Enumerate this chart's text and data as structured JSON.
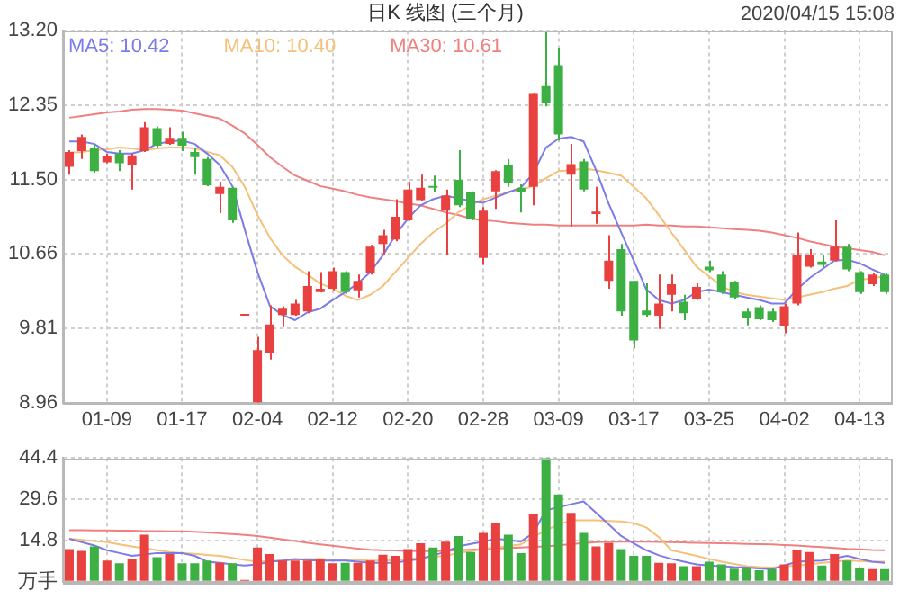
{
  "chart_data": [
    {
      "type": "candlestick",
      "title": "日K 线图 (三个月)",
      "annotations": [
        "2020/04/15 15:08"
      ],
      "categories": [
        null,
        null,
        null,
        "01-09",
        null,
        null,
        null,
        null,
        null,
        "01-17",
        null,
        null,
        null,
        null,
        null,
        "02-04",
        null,
        null,
        null,
        null,
        null,
        "02-12",
        null,
        null,
        null,
        null,
        null,
        "02-20",
        null,
        null,
        null,
        null,
        null,
        "02-28",
        null,
        null,
        null,
        null,
        null,
        "03-09",
        null,
        null,
        null,
        null,
        null,
        "03-17",
        null,
        null,
        null,
        null,
        null,
        "03-25",
        null,
        null,
        null,
        null,
        null,
        "04-02",
        null,
        null,
        null,
        null,
        null,
        "04-13",
        null,
        null
      ],
      "ohlc": [
        [
          11.65,
          11.84,
          11.56,
          11.82
        ],
        [
          11.83,
          12.02,
          11.74,
          11.99
        ],
        [
          11.87,
          11.91,
          11.58,
          11.6
        ],
        [
          11.7,
          11.8,
          11.69,
          11.77
        ],
        [
          11.8,
          11.84,
          11.6,
          11.69
        ],
        [
          11.67,
          11.8,
          11.39,
          11.78
        ],
        [
          11.83,
          12.16,
          11.82,
          12.1
        ],
        [
          12.09,
          12.11,
          11.87,
          11.89
        ],
        [
          11.91,
          12.1,
          11.9,
          11.98
        ],
        [
          11.98,
          12.05,
          11.83,
          11.89
        ],
        [
          11.82,
          11.86,
          11.56,
          11.76
        ],
        [
          11.74,
          11.76,
          11.43,
          11.44
        ],
        [
          11.34,
          11.48,
          11.12,
          11.42
        ],
        [
          11.41,
          11.42,
          11.01,
          11.04
        ],
        [
          9.95,
          9.95,
          9.95,
          9.95
        ],
        [
          8.96,
          9.71,
          8.96,
          9.56
        ],
        [
          9.53,
          10.07,
          9.45,
          9.85
        ],
        [
          9.96,
          10.06,
          9.82,
          10.03
        ],
        [
          9.96,
          10.13,
          9.95,
          10.09
        ],
        [
          10.0,
          10.46,
          9.98,
          10.29
        ],
        [
          10.22,
          10.45,
          10.22,
          10.26
        ],
        [
          10.26,
          10.5,
          10.24,
          10.46
        ],
        [
          10.45,
          10.46,
          10.2,
          10.22
        ],
        [
          10.24,
          10.42,
          10.16,
          10.35
        ],
        [
          10.44,
          10.76,
          10.42,
          10.74
        ],
        [
          10.77,
          10.93,
          10.64,
          10.87
        ],
        [
          10.82,
          11.28,
          10.8,
          11.08
        ],
        [
          11.04,
          11.48,
          11.03,
          11.39
        ],
        [
          11.27,
          11.56,
          11.26,
          11.41
        ],
        [
          11.43,
          11.55,
          11.36,
          11.41
        ],
        [
          11.15,
          11.39,
          10.64,
          11.32
        ],
        [
          11.5,
          11.84,
          11.19,
          11.21
        ],
        [
          11.36,
          11.37,
          11.04,
          11.06
        ],
        [
          10.61,
          11.19,
          10.53,
          11.15
        ],
        [
          11.37,
          11.61,
          11.17,
          11.6
        ],
        [
          11.67,
          11.74,
          11.42,
          11.47
        ],
        [
          11.41,
          11.45,
          11.13,
          11.36
        ],
        [
          11.42,
          12.49,
          11.21,
          12.49
        ],
        [
          12.57,
          13.2,
          12.34,
          12.38
        ],
        [
          12.81,
          13.01,
          11.95,
          12.02
        ],
        [
          11.56,
          11.91,
          10.97,
          11.68
        ],
        [
          11.71,
          11.74,
          11.37,
          11.39
        ],
        [
          11.11,
          11.42,
          11.0,
          11.14
        ],
        [
          10.35,
          10.87,
          10.26,
          10.58
        ],
        [
          10.71,
          10.77,
          9.95,
          10.0
        ],
        [
          10.35,
          10.35,
          9.58,
          9.67
        ],
        [
          10.01,
          10.32,
          9.93,
          9.96
        ],
        [
          9.95,
          10.42,
          9.8,
          10.09
        ],
        [
          10.19,
          10.42,
          10.0,
          10.31
        ],
        [
          10.11,
          10.19,
          9.9,
          9.98
        ],
        [
          10.14,
          10.32,
          10.13,
          10.28
        ],
        [
          10.51,
          10.58,
          10.45,
          10.47
        ],
        [
          10.42,
          10.46,
          10.2,
          10.22
        ],
        [
          10.33,
          10.35,
          10.14,
          10.16
        ],
        [
          10.0,
          10.03,
          9.84,
          9.92
        ],
        [
          10.05,
          10.07,
          9.9,
          9.91
        ],
        [
          10.0,
          10.03,
          9.88,
          9.9
        ],
        [
          9.83,
          10.09,
          9.75,
          10.06
        ],
        [
          10.09,
          10.9,
          10.07,
          10.64
        ],
        [
          10.51,
          10.71,
          10.5,
          10.64
        ],
        [
          10.57,
          10.64,
          10.5,
          10.53
        ],
        [
          10.58,
          11.04,
          10.57,
          10.74
        ],
        [
          10.74,
          10.77,
          10.46,
          10.48
        ],
        [
          10.45,
          10.46,
          10.2,
          10.22
        ],
        [
          10.31,
          10.44,
          10.29,
          10.42
        ],
        [
          10.42,
          10.44,
          10.2,
          10.22
        ]
      ],
      "colors": [
        "#e8413f",
        "#e8413f",
        "#3cb043",
        "#e8413f",
        "#3cb043",
        "#e8413f",
        "#e8413f",
        "#3cb043",
        "#e8413f",
        "#3cb043",
        "#3cb043",
        "#3cb043",
        "#e8413f",
        "#3cb043",
        "#e8413f",
        "#e8413f",
        "#e8413f",
        "#e8413f",
        "#e8413f",
        "#e8413f",
        "#e8413f",
        "#e8413f",
        "#3cb043",
        "#e8413f",
        "#e8413f",
        "#e8413f",
        "#e8413f",
        "#e8413f",
        "#e8413f",
        "#3cb043",
        "#e8413f",
        "#3cb043",
        "#3cb043",
        "#e8413f",
        "#e8413f",
        "#3cb043",
        "#3cb043",
        "#e8413f",
        "#3cb043",
        "#3cb043",
        "#e8413f",
        "#3cb043",
        "#e8413f",
        "#e8413f",
        "#3cb043",
        "#3cb043",
        "#3cb043",
        "#e8413f",
        "#e8413f",
        "#3cb043",
        "#e8413f",
        "#3cb043",
        "#3cb043",
        "#3cb043",
        "#3cb043",
        "#3cb043",
        "#3cb043",
        "#e8413f",
        "#e8413f",
        "#e8413f",
        "#3cb043",
        "#e8413f",
        "#3cb043",
        "#3cb043",
        "#e8413f",
        "#3cb043"
      ],
      "series": [
        {
          "type": "line",
          "name": "MA5: 10.42",
          "color": "#7b7bea",
          "values": [
            11.94,
            11.94,
            11.91,
            11.82,
            11.8,
            11.8,
            11.84,
            11.91,
            11.94,
            11.95,
            11.91,
            11.8,
            11.67,
            11.43,
            10.93,
            10.45,
            10.06,
            9.96,
            9.9,
            9.99,
            10.03,
            10.13,
            10.22,
            10.32,
            10.45,
            10.64,
            10.87,
            11.06,
            11.21,
            11.28,
            11.32,
            11.29,
            11.26,
            11.24,
            11.3,
            11.36,
            11.41,
            11.58,
            11.87,
            11.97,
            11.99,
            11.94,
            11.61,
            11.23,
            10.9,
            10.58,
            10.25,
            10.13,
            10.09,
            10.13,
            10.22,
            10.25,
            10.22,
            10.19,
            10.16,
            10.13,
            10.09,
            10.09,
            10.25,
            10.38,
            10.48,
            10.58,
            10.59,
            10.55,
            10.48,
            10.42
          ]
        },
        {
          "type": "line",
          "name": "MA10: 10.40",
          "color": "#f5c07a",
          "values": [
            11.81,
            11.82,
            11.84,
            11.85,
            11.87,
            11.86,
            11.84,
            11.86,
            11.87,
            11.87,
            11.86,
            11.82,
            11.78,
            11.65,
            11.42,
            11.1,
            10.84,
            10.64,
            10.51,
            10.42,
            10.32,
            10.26,
            10.18,
            10.13,
            10.19,
            10.29,
            10.45,
            10.61,
            10.77,
            10.9,
            11.0,
            11.13,
            11.21,
            11.28,
            11.32,
            11.36,
            11.39,
            11.43,
            11.52,
            11.6,
            11.61,
            11.63,
            11.61,
            11.58,
            11.55,
            11.42,
            11.29,
            11.1,
            10.9,
            10.71,
            10.51,
            10.4,
            10.29,
            10.22,
            10.19,
            10.17,
            10.15,
            10.13,
            10.16,
            10.19,
            10.22,
            10.26,
            10.29,
            10.36,
            10.38,
            10.4
          ]
        },
        {
          "type": "line",
          "name": "MA30: 10.61",
          "color": "#f08080",
          "values": [
            12.21,
            12.23,
            12.25,
            12.27,
            12.28,
            12.3,
            12.31,
            12.31,
            12.3,
            12.29,
            12.26,
            12.23,
            12.2,
            12.12,
            12.03,
            11.9,
            11.76,
            11.65,
            11.55,
            11.49,
            11.43,
            11.4,
            11.37,
            11.33,
            11.3,
            11.28,
            11.26,
            11.23,
            11.21,
            11.17,
            11.13,
            11.1,
            11.06,
            11.04,
            11.03,
            11.01,
            11.0,
            10.99,
            10.99,
            10.98,
            10.98,
            10.98,
            10.98,
            10.98,
            10.98,
            10.98,
            10.99,
            10.98,
            10.98,
            10.97,
            10.97,
            10.96,
            10.95,
            10.94,
            10.93,
            10.92,
            10.9,
            10.87,
            10.84,
            10.8,
            10.77,
            10.74,
            10.72,
            10.7,
            10.68,
            10.64
          ]
        }
      ],
      "ylim": [
        8.96,
        13.2
      ],
      "yticks": [
        {
          "value": 8.96,
          "label": "8.96"
        },
        {
          "value": 9.81,
          "label": "9.81"
        },
        {
          "value": 10.66,
          "label": "10.66"
        },
        {
          "value": 11.5,
          "label": "11.50"
        },
        {
          "value": 12.35,
          "label": "12.35"
        },
        {
          "value": 13.2,
          "label": "13.20"
        }
      ],
      "grid": true,
      "legend": "top left"
    },
    {
      "type": "bar",
      "categories": [
        null,
        null,
        null,
        null,
        null,
        null,
        null,
        null,
        null,
        null,
        null,
        null,
        null,
        null,
        null,
        null,
        null,
        null,
        null,
        null,
        null,
        null,
        null,
        null,
        null,
        null,
        null,
        null,
        null,
        null,
        null,
        null,
        null,
        null,
        null,
        null,
        null,
        null,
        null,
        null,
        null,
        null,
        null,
        null,
        null,
        null,
        null,
        null,
        null,
        null,
        null,
        null,
        null,
        null,
        null,
        null,
        null,
        null,
        null,
        null,
        null,
        null,
        null,
        null,
        null,
        null
      ],
      "series": [
        {
          "type": "bar",
          "values": [
            11.7,
            11.1,
            12.7,
            7.6,
            6.6,
            8.2,
            16.9,
            8.8,
            9.9,
            6.6,
            6.6,
            7.6,
            6.8,
            6.6,
            0.6,
            12.3,
            9.9,
            7.6,
            7.6,
            7.6,
            8.2,
            6.6,
            6.8,
            6.8,
            7.6,
            9.7,
            9.3,
            11.7,
            13.8,
            12.3,
            14.4,
            16.4,
            10.7,
            17.5,
            21.0,
            16.9,
            10.3,
            24.3,
            44.4,
            31.3,
            24.7,
            17.5,
            12.7,
            14.0,
            11.7,
            9.3,
            9.3,
            6.8,
            6.6,
            5.6,
            5.6,
            7.2,
            6.2,
            4.7,
            5.1,
            4.1,
            4.5,
            6.2,
            11.3,
            10.7,
            5.8,
            9.9,
            7.6,
            5.1,
            4.5,
            4.5
          ],
          "colors": [
            "#e8413f",
            "#e8413f",
            "#3cb043",
            "#e8413f",
            "#3cb043",
            "#e8413f",
            "#e8413f",
            "#3cb043",
            "#e8413f",
            "#3cb043",
            "#3cb043",
            "#3cb043",
            "#e8413f",
            "#3cb043",
            "#e8413f",
            "#e8413f",
            "#e8413f",
            "#e8413f",
            "#e8413f",
            "#e8413f",
            "#e8413f",
            "#e8413f",
            "#3cb043",
            "#e8413f",
            "#e8413f",
            "#e8413f",
            "#e8413f",
            "#e8413f",
            "#e8413f",
            "#3cb043",
            "#e8413f",
            "#3cb043",
            "#3cb043",
            "#e8413f",
            "#e8413f",
            "#3cb043",
            "#3cb043",
            "#e8413f",
            "#3cb043",
            "#3cb043",
            "#e8413f",
            "#3cb043",
            "#e8413f",
            "#e8413f",
            "#3cb043",
            "#3cb043",
            "#3cb043",
            "#e8413f",
            "#e8413f",
            "#3cb043",
            "#e8413f",
            "#3cb043",
            "#3cb043",
            "#3cb043",
            "#3cb043",
            "#3cb043",
            "#3cb043",
            "#e8413f",
            "#e8413f",
            "#e8413f",
            "#3cb043",
            "#e8413f",
            "#3cb043",
            "#3cb043",
            "#e8413f",
            "#3cb043"
          ]
        },
        {
          "type": "line",
          "color": "#7b7bea",
          "values": [
            15.4,
            14.2,
            13.0,
            11.3,
            10.3,
            9.3,
            9.8,
            10.3,
            10.3,
            10.3,
            9.3,
            7.2,
            6.8,
            6.2,
            5.8,
            6.2,
            7.2,
            7.6,
            8.2,
            7.8,
            7.6,
            7.6,
            7.6,
            7.2,
            6.8,
            6.8,
            6.8,
            7.6,
            8.2,
            9.5,
            10.7,
            12.7,
            13.6,
            14.4,
            15.4,
            15.0,
            14.4,
            17.5,
            25.7,
            26.7,
            27.8,
            28.8,
            24.7,
            20.6,
            16.4,
            13.8,
            11.3,
            9.5,
            8.2,
            7.2,
            6.2,
            5.8,
            5.6,
            5.3,
            5.1,
            4.8,
            4.5,
            5.8,
            7.2,
            7.4,
            7.6,
            8.4,
            9.3,
            8.2,
            7.2,
            6.8
          ]
        },
        {
          "type": "line",
          "color": "#f5c07a",
          "values": [
            15.4,
            15.0,
            14.6,
            14.2,
            13.4,
            12.7,
            12.0,
            11.3,
            10.7,
            10.3,
            10.0,
            9.6,
            9.3,
            8.6,
            7.8,
            7.2,
            7.4,
            7.6,
            8.0,
            8.2,
            8.2,
            8.0,
            7.8,
            7.8,
            7.6,
            7.6,
            7.8,
            8.2,
            8.6,
            9.0,
            9.3,
            10.3,
            11.0,
            11.8,
            12.3,
            12.8,
            13.4,
            16.0,
            18.5,
            20.5,
            22.0,
            22.0,
            22.0,
            21.8,
            21.6,
            21.0,
            19.5,
            16.0,
            11.3,
            10.3,
            9.3,
            8.2,
            7.2,
            6.4,
            5.6,
            5.3,
            5.1,
            5.5,
            5.8,
            6.2,
            6.8,
            7.2,
            7.6,
            7.4,
            7.2,
            7.2
          ]
        },
        {
          "type": "line",
          "color": "#f08080",
          "values": [
            18.5,
            18.5,
            18.4,
            18.4,
            18.3,
            18.3,
            18.2,
            18.2,
            18.1,
            18.1,
            17.9,
            17.7,
            17.4,
            17.1,
            16.8,
            16.4,
            15.8,
            15.2,
            14.6,
            14.0,
            13.4,
            12.9,
            12.4,
            11.9,
            11.5,
            11.3,
            11.2,
            11.1,
            11.0,
            11.0,
            11.1,
            11.3,
            11.5,
            11.7,
            11.9,
            12.1,
            12.3,
            12.5,
            12.7,
            13.1,
            13.5,
            13.9,
            14.2,
            14.4,
            14.4,
            14.4,
            14.4,
            14.3,
            14.2,
            14.1,
            14.0,
            13.9,
            13.8,
            13.7,
            13.6,
            13.5,
            13.4,
            13.2,
            13.0,
            12.7,
            12.4,
            12.1,
            11.8,
            11.6,
            11.4,
            11.3
          ]
        }
      ],
      "ylim": [
        0,
        44.4
      ],
      "yticks": [
        {
          "value": 0,
          "label": "万手"
        },
        14.8,
        29.6,
        44.4
      ],
      "grid": true,
      "tick_labels": "y"
    }
  ]
}
